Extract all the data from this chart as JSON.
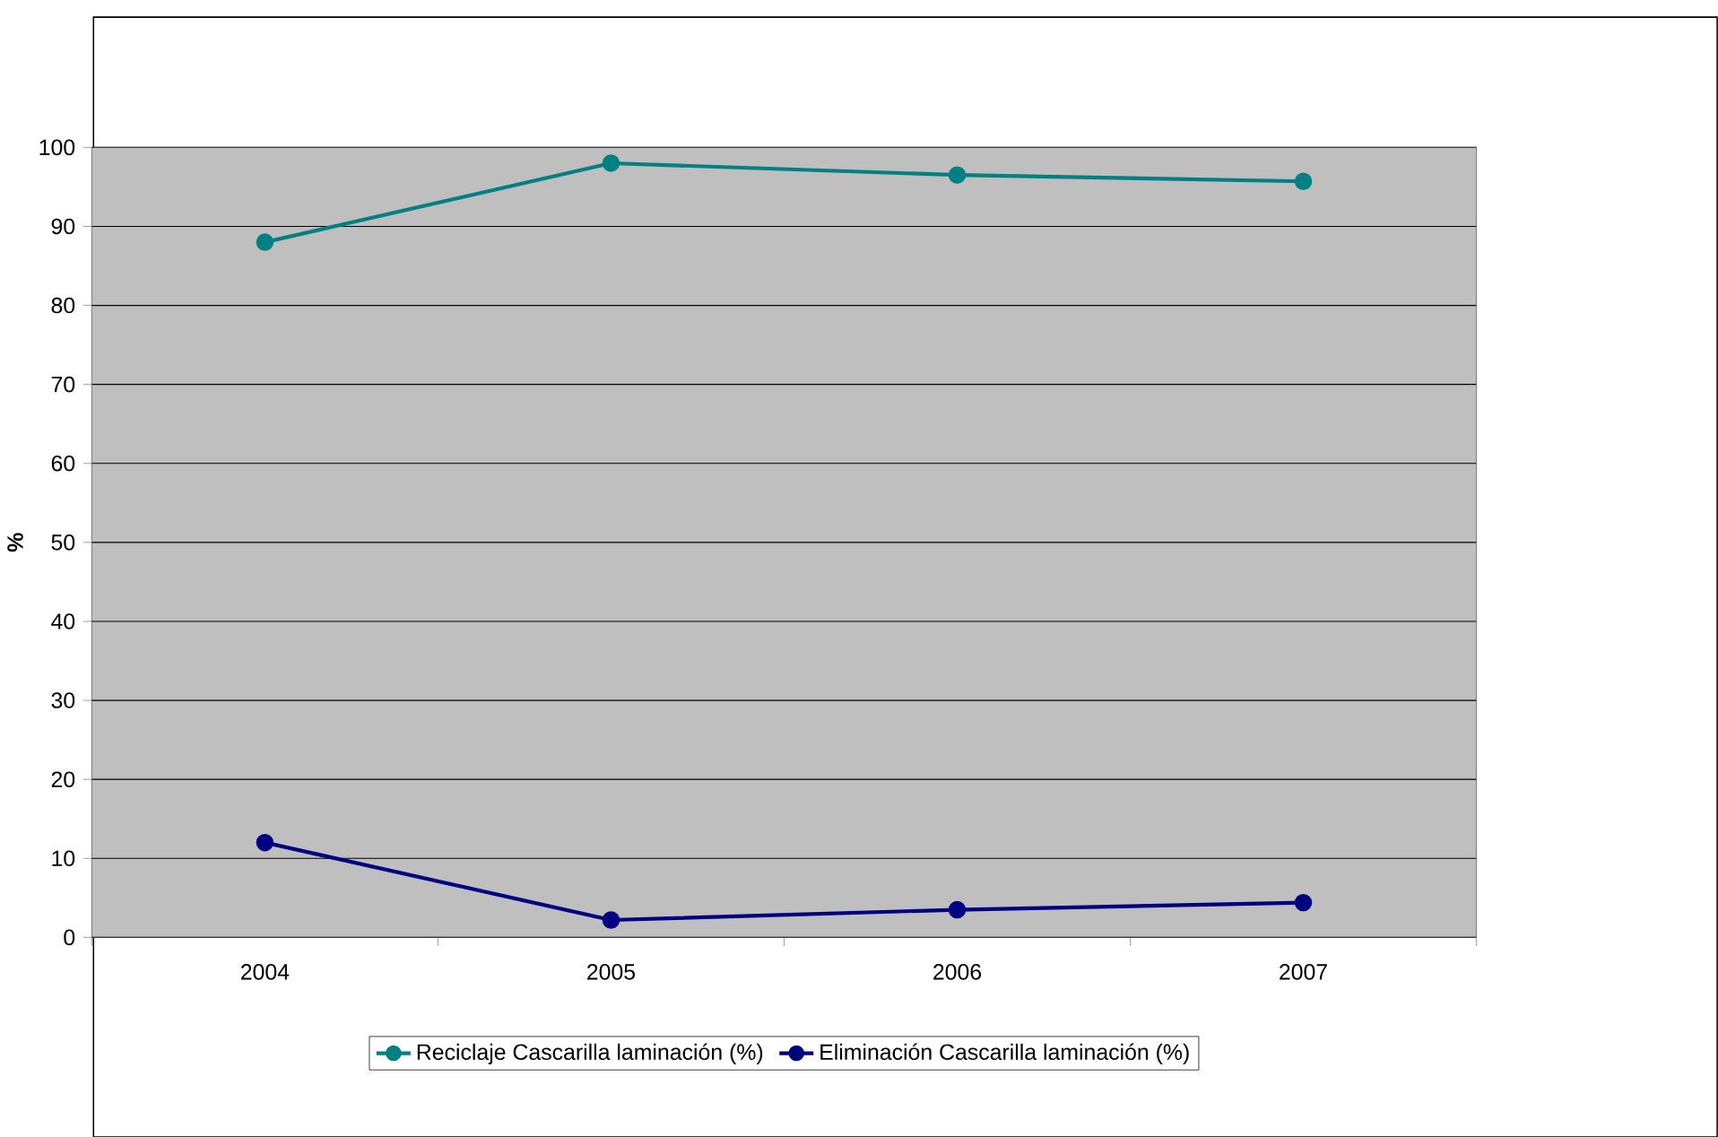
{
  "chart_data": {
    "type": "line",
    "ylabel": "%",
    "categories": [
      "2004",
      "2005",
      "2006",
      "2007"
    ],
    "series": [
      {
        "name": "Reciclaje Cascarilla laminación (%)",
        "color": "#008080",
        "values": [
          88,
          98,
          96.5,
          95.7
        ]
      },
      {
        "name": "Eliminación Cascarilla laminación (%)",
        "color": "#000080",
        "values": [
          12,
          2.2,
          3.5,
          4.4
        ]
      }
    ],
    "ylim": [
      0,
      100
    ],
    "yticks": [
      0,
      10,
      20,
      30,
      40,
      50,
      60,
      70,
      80,
      90,
      100
    ],
    "grid": "y",
    "legend": "bottom",
    "marker": "circle",
    "line_style": "solid"
  }
}
